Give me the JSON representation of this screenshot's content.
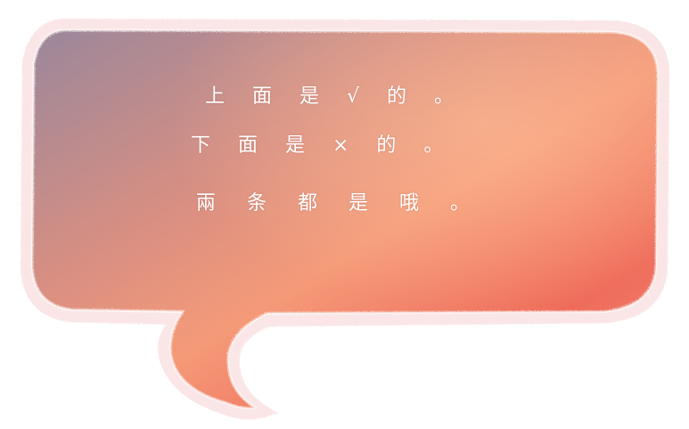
{
  "bubble": {
    "gradient_colors": [
      "#9e8496",
      "#e59580",
      "#f7a57f",
      "#ee6b5c"
    ],
    "border_color": "#f3d2d2"
  },
  "text": {
    "line1": "上 面 是 √ 的 。",
    "line2": "下 面 是 × 的 。",
    "line3": "兩 条 都 是 哦 。"
  }
}
